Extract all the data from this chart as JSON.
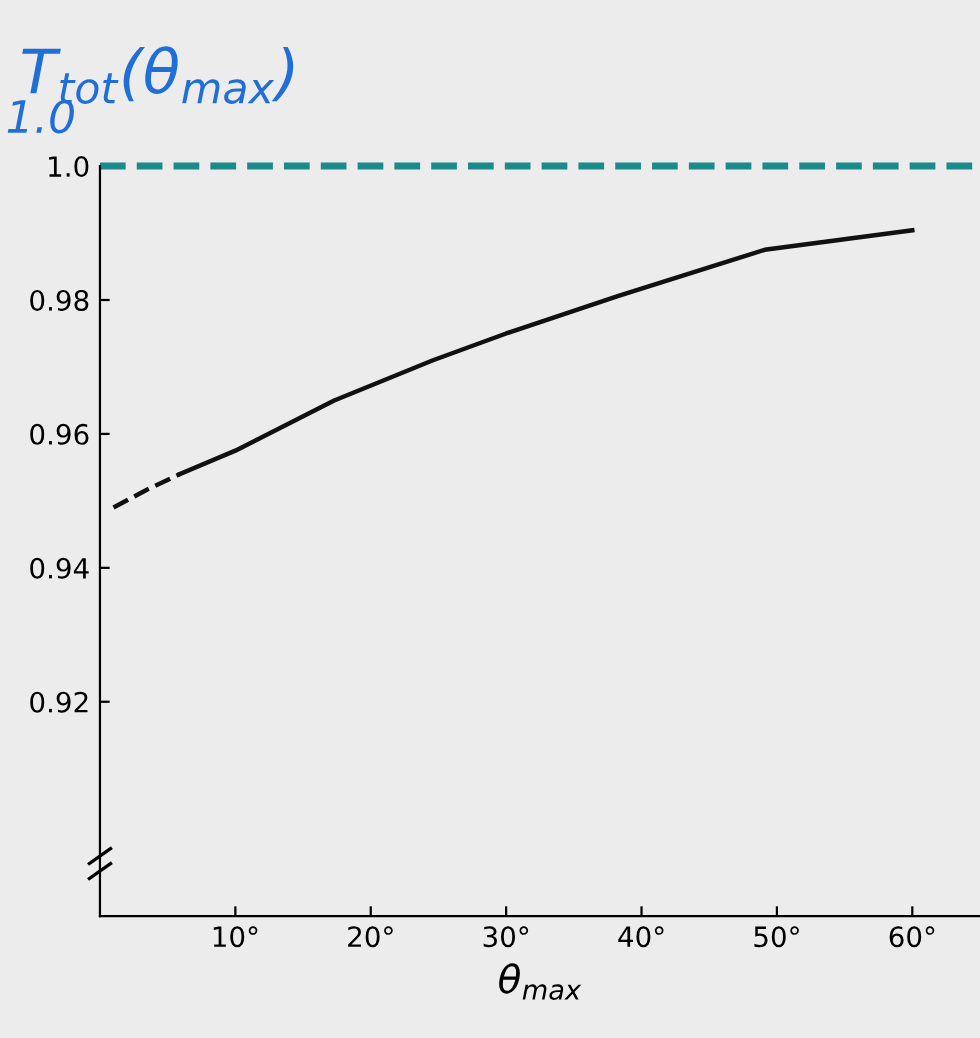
{
  "chart_data": {
    "type": "line",
    "title": "T$_{tot}$(θ$_{max}$)",
    "xlabel": "θ$_{max}$",
    "series": [
      {
        "color": "#111111",
        "line_style": "dashed",
        "x": [
          1,
          3.5,
          5.9
        ],
        "values": [
          0.949,
          0.9517,
          0.954
        ]
      },
      {
        "color": "#111111",
        "line_style": "solid",
        "x": [
          5.9,
          10,
          17.3,
          24.6,
          30,
          38.3,
          49.1,
          60
        ],
        "values": [
          0.954,
          0.9575,
          0.965,
          0.971,
          0.975,
          0.9806,
          0.9875,
          0.9904
        ]
      }
    ],
    "xlim": [
      0,
      65
    ],
    "ylim": [
      0.888,
      1.0
    ],
    "xticks": [
      {
        "value": 10,
        "label": "10°"
      },
      {
        "value": 20,
        "label": "20°"
      },
      {
        "value": 30,
        "label": "30°"
      },
      {
        "value": 40,
        "label": "40°"
      },
      {
        "value": 50,
        "label": "50°"
      },
      {
        "value": 60,
        "label": "60°"
      }
    ],
    "yticks": [
      0.92,
      0.94,
      0.96,
      0.98,
      {
        "value": 1.0,
        "label": "1.0"
      }
    ],
    "ref_lines": [
      {
        "axis": "y",
        "value": 1.0,
        "label": "1.0",
        "color": "#1a8a8a",
        "line_style": "dashed"
      }
    ],
    "grid": false,
    "legend": false,
    "marker": "none"
  }
}
